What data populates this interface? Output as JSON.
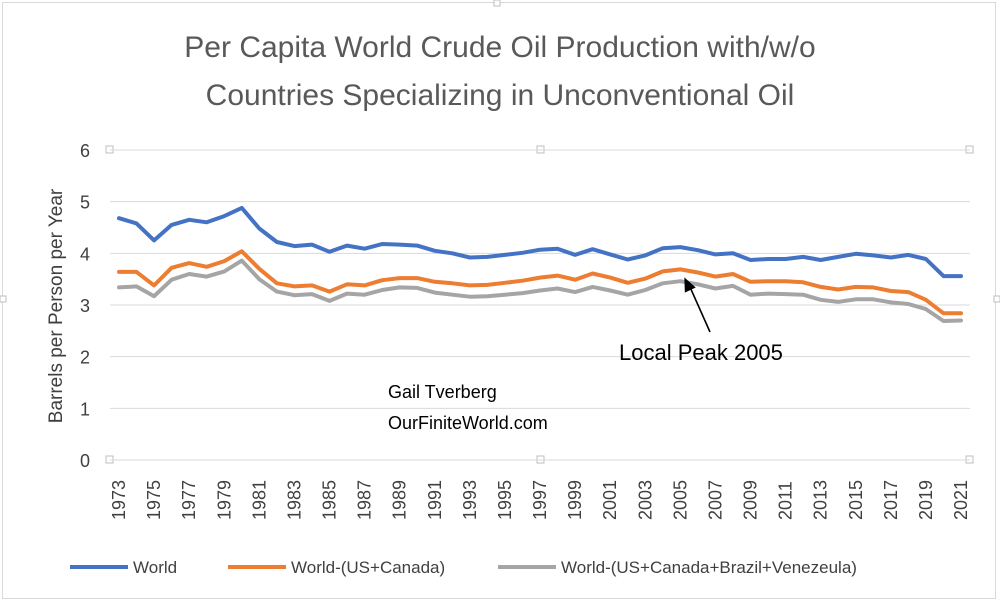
{
  "chart_data": {
    "type": "line",
    "title_lines": [
      "Per Capita World Crude Oil Production with/w/o",
      "Countries Specializing in Unconventional Oil"
    ],
    "ylabel": "Barrels per Person per Year",
    "xlabel": "",
    "ylim": [
      0,
      6
    ],
    "yticks": [
      0,
      1,
      2,
      3,
      4,
      5,
      6
    ],
    "grid": true,
    "legend_position": "bottom",
    "x": [
      1973,
      1974,
      1975,
      1976,
      1977,
      1978,
      1979,
      1980,
      1981,
      1982,
      1983,
      1984,
      1985,
      1986,
      1987,
      1988,
      1989,
      1990,
      1991,
      1992,
      1993,
      1994,
      1995,
      1996,
      1997,
      1998,
      1999,
      2000,
      2001,
      2002,
      2003,
      2004,
      2005,
      2006,
      2007,
      2008,
      2009,
      2010,
      2011,
      2012,
      2013,
      2014,
      2015,
      2016,
      2017,
      2018,
      2019,
      2020,
      2021
    ],
    "xtick_labels": [
      "1973",
      "1975",
      "1977",
      "1979",
      "1981",
      "1983",
      "1985",
      "1987",
      "1989",
      "1991",
      "1993",
      "1995",
      "1997",
      "1999",
      "2001",
      "2003",
      "2005",
      "2007",
      "2009",
      "2011",
      "2013",
      "2015",
      "2017",
      "2019",
      "2021"
    ],
    "series": [
      {
        "name": "World",
        "color": "#4472c4",
        "values": [
          4.68,
          4.58,
          4.25,
          4.55,
          4.65,
          4.6,
          4.72,
          4.88,
          4.48,
          4.22,
          4.14,
          4.17,
          4.03,
          4.15,
          4.09,
          4.18,
          4.17,
          4.15,
          4.05,
          4.0,
          3.92,
          3.93,
          3.97,
          4.01,
          4.07,
          4.09,
          3.97,
          4.08,
          3.98,
          3.88,
          3.96,
          4.1,
          4.12,
          4.06,
          3.98,
          4.0,
          3.87,
          3.89,
          3.89,
          3.93,
          3.87,
          3.93,
          3.99,
          3.96,
          3.92,
          3.97,
          3.89,
          3.56,
          3.56
        ]
      },
      {
        "name": "World-(US+Canada)",
        "color": "#ed7d31",
        "values": [
          3.64,
          3.64,
          3.38,
          3.72,
          3.81,
          3.74,
          3.85,
          4.04,
          3.7,
          3.42,
          3.36,
          3.38,
          3.26,
          3.4,
          3.38,
          3.48,
          3.52,
          3.52,
          3.45,
          3.42,
          3.38,
          3.39,
          3.43,
          3.47,
          3.53,
          3.57,
          3.49,
          3.61,
          3.53,
          3.43,
          3.51,
          3.65,
          3.69,
          3.63,
          3.55,
          3.6,
          3.45,
          3.46,
          3.46,
          3.44,
          3.35,
          3.3,
          3.35,
          3.34,
          3.27,
          3.25,
          3.1,
          2.84,
          2.84
        ]
      },
      {
        "name": "World-(US+Canada+Brazil+Venezeula)",
        "color": "#a5a5a5",
        "values": [
          3.34,
          3.36,
          3.17,
          3.49,
          3.6,
          3.55,
          3.65,
          3.86,
          3.5,
          3.26,
          3.19,
          3.21,
          3.08,
          3.22,
          3.2,
          3.29,
          3.34,
          3.33,
          3.24,
          3.2,
          3.16,
          3.17,
          3.2,
          3.23,
          3.28,
          3.32,
          3.25,
          3.35,
          3.28,
          3.2,
          3.29,
          3.42,
          3.46,
          3.4,
          3.32,
          3.37,
          3.2,
          3.22,
          3.21,
          3.2,
          3.1,
          3.06,
          3.11,
          3.11,
          3.05,
          3.02,
          2.92,
          2.69,
          2.7
        ]
      }
    ],
    "annotations": {
      "peak_label": "Local Peak 2005",
      "peak_year": 2005,
      "author_line1": "Gail Tverberg",
      "author_line2": "OurFiniteWorld.com"
    }
  }
}
